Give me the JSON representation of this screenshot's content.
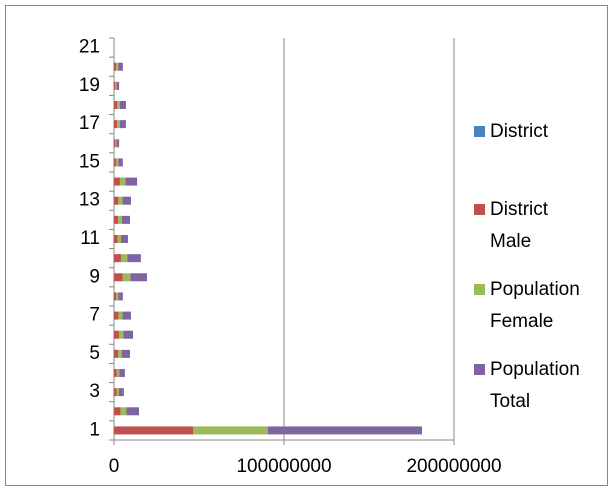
{
  "chart_data": {
    "type": "stacked-barh",
    "categories": [
      "1",
      null,
      "3",
      null,
      "5",
      null,
      "7",
      null,
      "9",
      null,
      "11",
      null,
      "13",
      null,
      "15",
      null,
      "17",
      null,
      "19",
      null,
      "21"
    ],
    "series": [
      {
        "name": "District",
        "color": "#4f81bd",
        "values": [
          0,
          0,
          0,
          0,
          0,
          0,
          0,
          0,
          0,
          0,
          0,
          0,
          0,
          0,
          0,
          0,
          0,
          0,
          0,
          0,
          0
        ]
      },
      {
        "name": "District Male",
        "color": "#c0504d",
        "values": [
          46500000,
          3800000,
          1500000,
          1650000,
          2400000,
          2900000,
          2600000,
          1350000,
          5000000,
          4100000,
          2100000,
          2400000,
          2600000,
          3500000,
          1350000,
          780000,
          1800000,
          1800000,
          780000,
          1350000,
          0
        ]
      },
      {
        "name": "Population Female",
        "color": "#9bbb59",
        "values": [
          44100000,
          3550000,
          1400000,
          1550000,
          2300000,
          2700000,
          2400000,
          1250000,
          4700000,
          3800000,
          2000000,
          2300000,
          2400000,
          3300000,
          1250000,
          720000,
          1700000,
          1700000,
          720000,
          1250000,
          0
        ]
      },
      {
        "name": "Population Total",
        "color": "#8064a2",
        "values": [
          90600000,
          7350000,
          2900000,
          3200000,
          4700000,
          5600000,
          5000000,
          2600000,
          9700000,
          7900000,
          4100000,
          4700000,
          5000000,
          6800000,
          2600000,
          1500000,
          3500000,
          3500000,
          1500000,
          2600000,
          0
        ]
      }
    ],
    "xlim": [
      0,
      200000000
    ],
    "xticks": [
      0,
      100000000,
      200000000
    ],
    "grid": true
  }
}
